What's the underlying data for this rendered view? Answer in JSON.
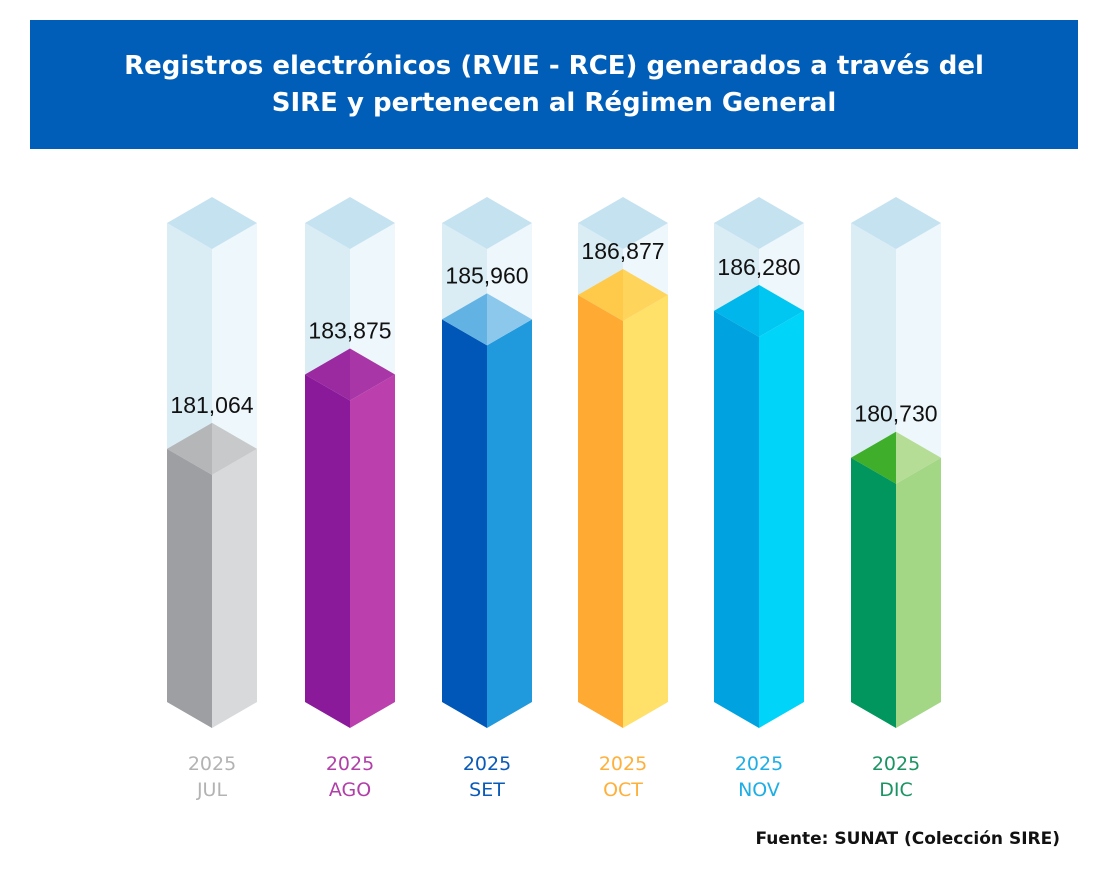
{
  "chart_data": {
    "type": "bar",
    "title_lines": [
      "Registros electrónicos (RVIE - RCE) generados a través del",
      "SIRE y pertenecen al Régimen General"
    ],
    "categories": [
      {
        "year": "2025",
        "month": "JUL"
      },
      {
        "year": "2025",
        "month": "AGO"
      },
      {
        "year": "2025",
        "month": "SET"
      },
      {
        "year": "2025",
        "month": "OCT"
      },
      {
        "year": "2025",
        "month": "NOV"
      },
      {
        "year": "2025",
        "month": "DIC"
      }
    ],
    "values": [
      181064,
      183875,
      185960,
      186877,
      186280,
      180730
    ],
    "value_labels": [
      "181,064",
      "183,875",
      "185,960",
      "186,877",
      "186,280",
      "180,730"
    ],
    "ylim": [
      171500,
      189600
    ],
    "colors": [
      {
        "left": "#9d9fa2",
        "right": "#d8d9db",
        "top_left": "#b5b6b8",
        "top_right": "#c8c9cb",
        "label": "#b3b3b3"
      },
      {
        "left": "#8b1a9a",
        "right": "#bb40ad",
        "top_left": "#9b2aa0",
        "top_right": "#a936a6",
        "label": "#b13fa8"
      },
      {
        "left": "#0057b8",
        "right": "#2199dd",
        "top_left": "#62b3e4",
        "top_right": "#8cc8ec",
        "label": "#0a5ab8"
      },
      {
        "left": "#ffaa33",
        "right": "#ffe16a",
        "top_left": "#ffc94a",
        "top_right": "#ffd45b",
        "label": "#ffb03b"
      },
      {
        "left": "#00a3e0",
        "right": "#00d4f9",
        "top_left": "#00b6ea",
        "top_right": "#00c6f2",
        "label": "#1eaee6"
      },
      {
        "left": "#00965e",
        "right": "#a3d786",
        "top_left": "#3fae2a",
        "top_right": "#b6dd95",
        "label": "#1b9463"
      }
    ],
    "ghost_colors": {
      "left": "#daedf5",
      "right": "#eef7fb",
      "top": "#c5e2f1"
    }
  },
  "source": "Fuente: SUNAT (Colección SIRE)"
}
